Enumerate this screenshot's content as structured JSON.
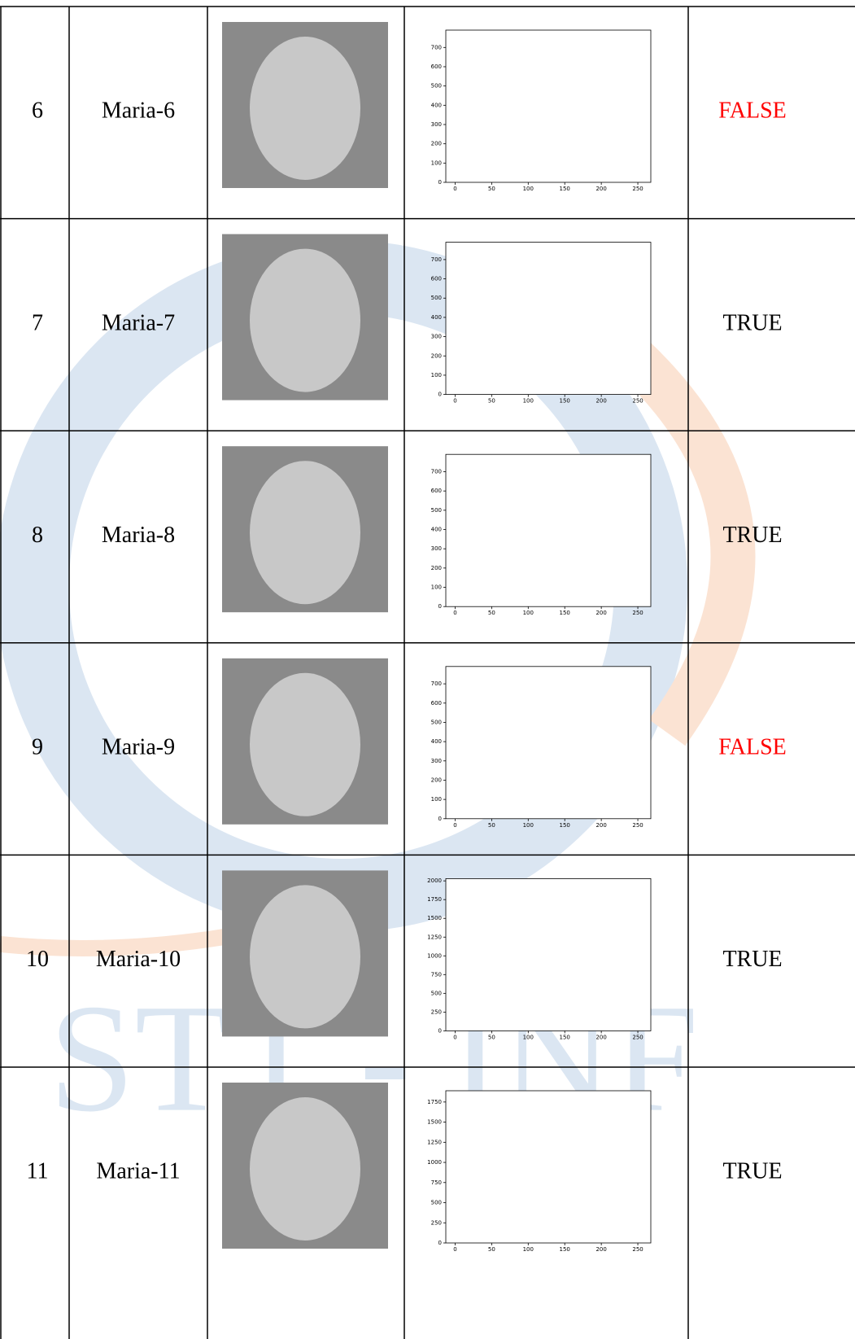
{
  "watermark": "STT - INF",
  "table": {
    "rows": [
      {
        "number": "6",
        "name": "Maria-6",
        "result": "FALSE",
        "result_color": "#ff0000",
        "histogram": {
          "xlim": [
            -12.75,
            267.75
          ],
          "xticks": [
            0,
            50,
            100,
            150,
            200,
            250
          ],
          "ylim": [
            0,
            790
          ],
          "yticks": [
            0,
            100,
            200,
            300,
            400,
            500,
            600,
            700
          ]
        }
      },
      {
        "number": "7",
        "name": "Maria-7",
        "result": "TRUE",
        "result_color": "#000000",
        "histogram": {
          "xlim": [
            -12.75,
            267.75
          ],
          "xticks": [
            0,
            50,
            100,
            150,
            200,
            250
          ],
          "ylim": [
            0,
            790
          ],
          "yticks": [
            0,
            100,
            200,
            300,
            400,
            500,
            600,
            700
          ]
        }
      },
      {
        "number": "8",
        "name": "Maria-8",
        "result": "TRUE",
        "result_color": "#000000",
        "histogram": {
          "xlim": [
            -12.75,
            267.75
          ],
          "xticks": [
            0,
            50,
            100,
            150,
            200,
            250
          ],
          "ylim": [
            0,
            790
          ],
          "yticks": [
            0,
            100,
            200,
            300,
            400,
            500,
            600,
            700
          ]
        }
      },
      {
        "number": "9",
        "name": "Maria-9",
        "result": "FALSE",
        "result_color": "#ff0000",
        "histogram": {
          "xlim": [
            -12.75,
            267.75
          ],
          "xticks": [
            0,
            50,
            100,
            150,
            200,
            250
          ],
          "ylim": [
            0,
            790
          ],
          "yticks": [
            0,
            100,
            200,
            300,
            400,
            500,
            600,
            700
          ]
        }
      },
      {
        "number": "10",
        "name": "Maria-10",
        "result": "TRUE",
        "result_color": "#000000",
        "histogram": {
          "xlim": [
            -12.75,
            267.75
          ],
          "xticks": [
            0,
            50,
            100,
            150,
            200,
            250
          ],
          "ylim": [
            0,
            2030
          ],
          "yticks": [
            0,
            250,
            500,
            750,
            1000,
            1250,
            1500,
            1750,
            2000
          ]
        }
      },
      {
        "number": "11",
        "name": "Maria-11",
        "result": "TRUE",
        "result_color": "#000000",
        "histogram": {
          "xlim": [
            -12.75,
            267.75
          ],
          "xticks": [
            0,
            50,
            100,
            150,
            200,
            250
          ],
          "ylim": [
            0,
            1890
          ],
          "yticks": [
            0,
            250,
            500,
            750,
            1000,
            1250,
            1500,
            1750
          ]
        }
      }
    ]
  }
}
